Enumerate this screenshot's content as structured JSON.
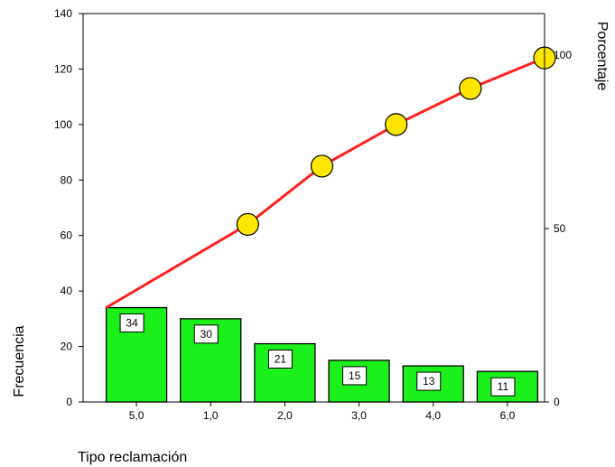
{
  "chart_data": {
    "type": "bar",
    "categories": [
      "5,0",
      "1,0",
      "2,0",
      "3,0",
      "4,0",
      "6,0"
    ],
    "series": [
      {
        "values": [
          34,
          30,
          21,
          15,
          13,
          11
        ]
      }
    ],
    "cumulative_percentage": [
      27.2,
      51.2,
      68.0,
      80.0,
      90.4,
      99.2
    ],
    "xlabel": "Tipo reclamación",
    "ylabel": "Frecuencia",
    "y2label": "Porcentaje",
    "ylim": [
      0,
      140
    ],
    "yticks": [
      "0",
      "20",
      "40",
      "60",
      "80",
      "100",
      "120",
      "140"
    ],
    "y2lim": [
      0,
      112
    ],
    "y2ticks": [
      "0",
      "50",
      "100"
    ],
    "grid": false,
    "bar_labels": [
      "34",
      "30",
      "21",
      "15",
      "13",
      "11"
    ],
    "colors": {
      "bar_fill": "#1bf01b",
      "line": "#ff2020",
      "marker_fill": "#ffe600",
      "marker_stroke": "#000000"
    }
  }
}
